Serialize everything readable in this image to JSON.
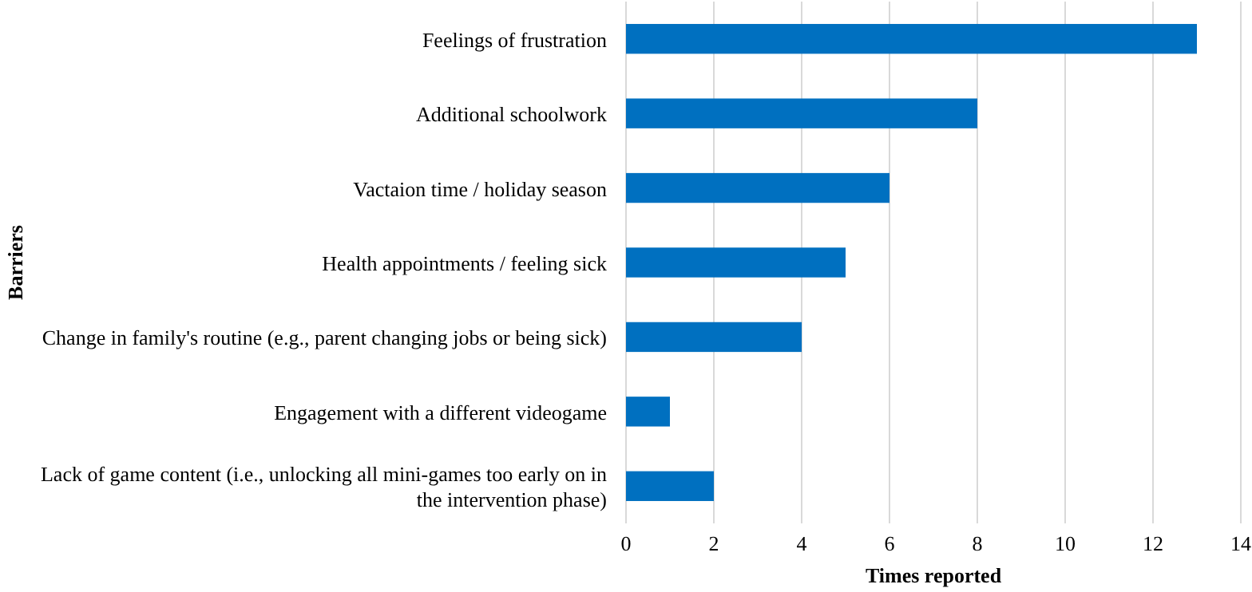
{
  "chart_data": {
    "type": "bar",
    "orientation": "horizontal",
    "categories": [
      "Feelings of frustration",
      "Additional schoolwork",
      "Vactaion time / holiday season",
      "Health appointments / feeling sick",
      "Change in family's routine (e.g., parent changing jobs or being sick)",
      "Engagement with a different videogame",
      "Lack of game content (i.e., unlocking all mini-games too early on in the intervention phase)"
    ],
    "values": [
      13,
      8,
      6,
      5,
      4,
      1,
      2
    ],
    "color": "#0070c0",
    "xlim": [
      0,
      14
    ],
    "xticks": [
      0,
      2,
      4,
      6,
      8,
      10,
      12,
      14
    ],
    "grid": "x",
    "xlabel": "Times reported",
    "ylabel": "Barriers"
  }
}
